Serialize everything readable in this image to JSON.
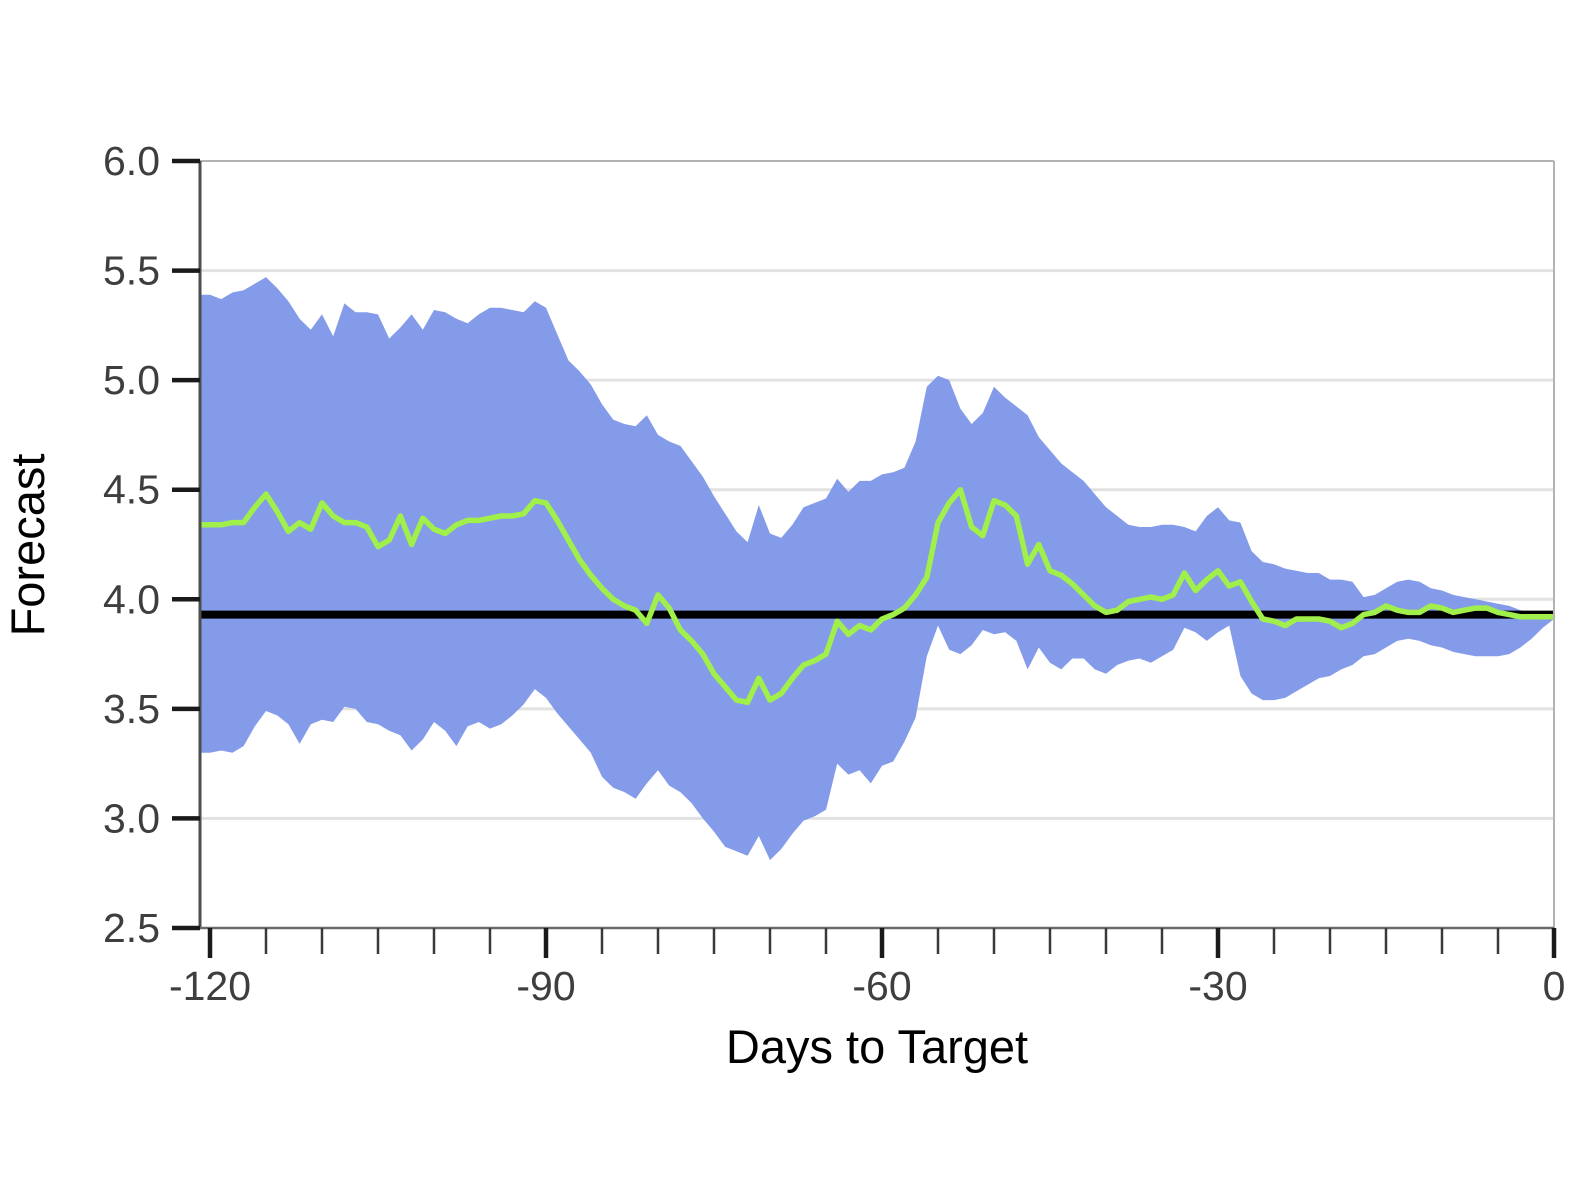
{
  "chart_data": {
    "type": "area",
    "title": "",
    "xlabel": "Days to Target",
    "ylabel": "Forecast",
    "xlim": [
      -121,
      0
    ],
    "ylim": [
      2.5,
      6.0
    ],
    "grid": true,
    "legend": "none",
    "background_color": "#ffffff",
    "band_color": "#7c96e8",
    "forecast_line_color": "#a0ef4a",
    "reference_line": {
      "value": 3.93,
      "color": "#000000"
    },
    "x_axis": {
      "title": "Days to Target",
      "major_ticks": [
        {
          "day": -120,
          "label": "-120"
        },
        {
          "day": -90,
          "label": "-90"
        },
        {
          "day": -60,
          "label": "-60"
        },
        {
          "day": -30,
          "label": "-30"
        },
        {
          "day": 0,
          "label": "0"
        }
      ],
      "minor_tick_step_days": 5
    },
    "y_axis": {
      "title": "Forecast",
      "tick_values": [
        6.0,
        5.5,
        5.0,
        4.5,
        4.0,
        3.5,
        3.0,
        2.5
      ],
      "tick_labels": [
        "6.0",
        "5.5",
        "5.0",
        "4.5",
        "4.0",
        "3.5",
        "3.0",
        "2.5"
      ]
    },
    "days_start": -120,
    "days_end": 0,
    "days_step": 1,
    "series": [
      {
        "name": "forecast",
        "role": "center-line",
        "values": [
          4.34,
          4.34,
          4.35,
          4.35,
          4.42,
          4.48,
          4.4,
          4.31,
          4.35,
          4.32,
          4.44,
          4.38,
          4.35,
          4.35,
          4.33,
          4.24,
          4.27,
          4.38,
          4.25,
          4.37,
          4.32,
          4.3,
          4.34,
          4.36,
          4.36,
          4.37,
          4.38,
          4.38,
          4.39,
          4.45,
          4.44,
          4.36,
          4.27,
          4.18,
          4.11,
          4.05,
          4.0,
          3.97,
          3.95,
          3.89,
          4.02,
          3.96,
          3.86,
          3.81,
          3.75,
          3.66,
          3.6,
          3.54,
          3.53,
          3.64,
          3.54,
          3.57,
          3.64,
          3.7,
          3.72,
          3.75,
          3.9,
          3.84,
          3.88,
          3.86,
          3.91,
          3.93,
          3.96,
          4.02,
          4.1,
          4.35,
          4.44,
          4.5,
          4.33,
          4.29,
          4.45,
          4.43,
          4.38,
          4.16,
          4.25,
          4.13,
          4.11,
          4.07,
          4.02,
          3.97,
          3.94,
          3.95,
          3.99,
          4.0,
          4.01,
          4.0,
          4.02,
          4.12,
          4.04,
          4.09,
          4.13,
          4.06,
          4.08,
          3.99,
          3.91,
          3.9,
          3.88,
          3.91,
          3.91,
          3.91,
          3.9,
          3.87,
          3.89,
          3.93,
          3.94,
          3.97,
          3.95,
          3.94,
          3.94,
          3.97,
          3.96,
          3.94,
          3.95,
          3.96,
          3.96,
          3.94,
          3.93,
          3.92,
          3.92,
          3.92,
          3.92
        ]
      },
      {
        "name": "band-upper",
        "role": "interval-upper",
        "values": [
          5.39,
          5.37,
          5.4,
          5.41,
          5.44,
          5.47,
          5.42,
          5.36,
          5.28,
          5.23,
          5.3,
          5.2,
          5.35,
          5.31,
          5.31,
          5.3,
          5.19,
          5.24,
          5.3,
          5.23,
          5.32,
          5.31,
          5.28,
          5.26,
          5.3,
          5.33,
          5.33,
          5.32,
          5.31,
          5.36,
          5.33,
          5.21,
          5.09,
          5.04,
          4.98,
          4.89,
          4.82,
          4.8,
          4.79,
          4.84,
          4.75,
          4.72,
          4.7,
          4.63,
          4.56,
          4.47,
          4.39,
          4.31,
          4.26,
          4.43,
          4.3,
          4.28,
          4.34,
          4.42,
          4.44,
          4.46,
          4.55,
          4.49,
          4.54,
          4.54,
          4.57,
          4.58,
          4.6,
          4.72,
          4.97,
          5.02,
          5.0,
          4.87,
          4.8,
          4.85,
          4.97,
          4.92,
          4.88,
          4.84,
          4.74,
          4.68,
          4.62,
          4.58,
          4.54,
          4.48,
          4.42,
          4.38,
          4.34,
          4.33,
          4.33,
          4.34,
          4.34,
          4.33,
          4.31,
          4.38,
          4.42,
          4.36,
          4.35,
          4.22,
          4.17,
          4.16,
          4.14,
          4.13,
          4.12,
          4.12,
          4.09,
          4.09,
          4.08,
          4.01,
          4.02,
          4.05,
          4.08,
          4.09,
          4.08,
          4.05,
          4.04,
          4.02,
          4.01,
          4.0,
          3.99,
          3.98,
          3.97,
          3.95,
          3.94,
          3.93,
          3.93
        ]
      },
      {
        "name": "band-lower",
        "role": "interval-lower",
        "values": [
          3.3,
          3.31,
          3.3,
          3.33,
          3.42,
          3.49,
          3.47,
          3.43,
          3.34,
          3.43,
          3.45,
          3.44,
          3.51,
          3.5,
          3.44,
          3.43,
          3.4,
          3.38,
          3.31,
          3.36,
          3.44,
          3.4,
          3.33,
          3.42,
          3.44,
          3.41,
          3.43,
          3.47,
          3.52,
          3.59,
          3.55,
          3.48,
          3.42,
          3.36,
          3.3,
          3.19,
          3.14,
          3.12,
          3.09,
          3.16,
          3.22,
          3.15,
          3.12,
          3.07,
          3.0,
          2.94,
          2.87,
          2.85,
          2.83,
          2.92,
          2.81,
          2.86,
          2.93,
          2.99,
          3.01,
          3.04,
          3.25,
          3.2,
          3.22,
          3.16,
          3.24,
          3.26,
          3.35,
          3.46,
          3.74,
          3.88,
          3.77,
          3.75,
          3.79,
          3.86,
          3.84,
          3.85,
          3.81,
          3.68,
          3.78,
          3.71,
          3.68,
          3.73,
          3.73,
          3.68,
          3.66,
          3.7,
          3.72,
          3.73,
          3.71,
          3.74,
          3.77,
          3.87,
          3.85,
          3.81,
          3.85,
          3.88,
          3.65,
          3.57,
          3.54,
          3.54,
          3.55,
          3.58,
          3.61,
          3.64,
          3.65,
          3.68,
          3.7,
          3.74,
          3.75,
          3.78,
          3.81,
          3.82,
          3.81,
          3.79,
          3.78,
          3.76,
          3.75,
          3.74,
          3.74,
          3.74,
          3.75,
          3.78,
          3.82,
          3.87,
          3.91
        ]
      }
    ]
  }
}
